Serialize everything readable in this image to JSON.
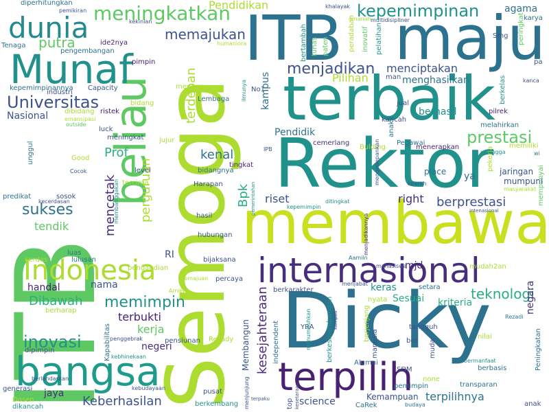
{
  "colors": {
    "background": "#ffffff",
    "palette": [
      "#440154",
      "#472d7b",
      "#3b528b",
      "#2c728e",
      "#21918c",
      "#28ae80",
      "#5ec962",
      "#addc30",
      "#fde725"
    ]
  },
  "words": [
    {
      "text": "ITB",
      "c": "#5ec962"
    },
    {
      "text": "Semoga",
      "c": "#addc30"
    },
    {
      "text": "maju",
      "c": "#2c728e"
    },
    {
      "text": "ITB",
      "c": "#2c728e"
    },
    {
      "text": "membawa",
      "c": "#c8e020"
    },
    {
      "text": "Dicky",
      "c": "#2c728e"
    },
    {
      "text": "Rektor",
      "c": "#21918c"
    },
    {
      "text": "terbaik",
      "c": "#21918c"
    },
    {
      "text": "beliau",
      "c": "#5ec962"
    },
    {
      "text": "terpilih",
      "c": "#482173"
    },
    {
      "text": "internasional",
      "c": "#472d7b"
    },
    {
      "text": "bangsa",
      "c": "#1e9b8a"
    },
    {
      "text": "Munaf",
      "c": "#21918c"
    },
    {
      "text": "Indonesia",
      "c": "#addc30"
    },
    {
      "text": "dunia",
      "c": "#238a8d"
    },
    {
      "text": "meningkatkan",
      "c": "#5ec962"
    },
    {
      "text": "kepemimpinan",
      "c": "#21918c"
    },
    {
      "text": "Universitas",
      "c": "#3b528b"
    },
    {
      "text": "prestasi",
      "c": "#5ec962"
    },
    {
      "text": "inovasi",
      "c": "#21918c"
    },
    {
      "text": "memimpin",
      "c": "#21918c"
    },
    {
      "text": "menjadikan",
      "c": "#3b528b"
    },
    {
      "text": "sukses",
      "c": "#2c728e"
    },
    {
      "text": "Keberhasilan",
      "c": "#3b528b"
    },
    {
      "text": "berprestasi",
      "c": "#3b528b"
    },
    {
      "text": "teknologi",
      "c": "#28ae80"
    },
    {
      "text": "kesejahteraan",
      "c": "#472d7b"
    },
    {
      "text": "Pendidikan",
      "c": "#addc30"
    },
    {
      "text": "memajukan",
      "c": "#3b528b"
    },
    {
      "text": "putra",
      "c": "#5ec962"
    },
    {
      "text": "menciptakan",
      "c": "#3b528b"
    },
    {
      "text": "menghasilkan",
      "c": "#2c728e"
    },
    {
      "text": "Pilihan",
      "c": "#addc30"
    },
    {
      "text": "Prof",
      "c": "#28ae80"
    },
    {
      "text": "kenal",
      "c": "#2c728e"
    },
    {
      "text": "mencetak",
      "c": "#472d7b"
    },
    {
      "text": "perguruan",
      "c": "#addc30"
    },
    {
      "text": "terdepan",
      "c": "#addc30"
    },
    {
      "text": "Bpk",
      "c": "#28ae80"
    },
    {
      "text": "riset",
      "c": "#3b528b"
    },
    {
      "text": "right",
      "c": "#472d7b"
    },
    {
      "text": "Dibawah",
      "c": "#28ae80"
    },
    {
      "text": "terbukti",
      "c": "#482173"
    },
    {
      "text": "kerja",
      "c": "#5ec962"
    },
    {
      "text": "negeri",
      "c": "#472d7b"
    },
    {
      "text": "jaya",
      "c": "#472d7b"
    },
    {
      "text": "Sesuai",
      "c": "#28ae80"
    },
    {
      "text": "kriteria",
      "c": "#28ae80"
    },
    {
      "text": "negara",
      "c": "#472d7b"
    },
    {
      "text": "terpilihnya",
      "c": "#2c728e"
    },
    {
      "text": "science",
      "c": "#3b528b"
    },
    {
      "text": "keras",
      "c": "#21918c"
    },
    {
      "text": "berhasil",
      "c": "#21918c"
    },
    {
      "text": "Membangun",
      "c": "#3b528b"
    },
    {
      "text": "handal",
      "c": "#482173"
    },
    {
      "text": "nama",
      "c": "#3b528b"
    },
    {
      "text": "tendik",
      "c": "#5ec962"
    },
    {
      "text": "Nasional",
      "c": "#3b528b"
    },
    {
      "text": "agama",
      "c": "#2c728e"
    },
    {
      "text": "kampus",
      "c": "#2c728e"
    },
    {
      "text": "mjd",
      "c": "#482173"
    },
    {
      "text": "RI",
      "c": "#3b528b"
    },
    {
      "text": "Pendidik",
      "c": "#2c728e"
    },
    {
      "text": "Kemampuan",
      "c": "#3b528b"
    },
    {
      "text": "Tenaga",
      "c": "#2c728e"
    },
    {
      "text": "pengembangan",
      "c": "#2c728e"
    },
    {
      "text": "ide2nya",
      "c": "#482173"
    },
    {
      "text": "pimpin",
      "c": "#482173"
    },
    {
      "text": "kepemimpinannya",
      "c": "#2c728e"
    },
    {
      "text": "industri",
      "c": "#3b528b"
    },
    {
      "text": "Capacity",
      "c": "#3b528b"
    },
    {
      "text": "dibidang",
      "c": "#addc30"
    },
    {
      "text": "ristek",
      "c": "#482173"
    },
    {
      "text": "bidang",
      "c": "#addc30"
    },
    {
      "text": "menang",
      "c": "#addc30"
    },
    {
      "text": "Lembaga",
      "c": "#2c728e"
    },
    {
      "text": "No1",
      "c": "#3b528b"
    },
    {
      "text": "man",
      "c": "#3b528b"
    },
    {
      "text": "diperhitungkan",
      "c": "#2c728e"
    },
    {
      "text": "pemikiran",
      "c": "#3b528b"
    },
    {
      "text": "kekinian",
      "c": "#3b528b"
    },
    {
      "text": "multidisipliner",
      "c": "#3b528b"
    },
    {
      "text": "khalayak",
      "c": "#3b528b"
    },
    {
      "text": "amanah",
      "c": "#addc30"
    },
    {
      "text": "peradaban",
      "c": "#addc30"
    },
    {
      "text": "inovatif",
      "c": "#5ec962"
    },
    {
      "text": "pelatihan",
      "c": "#21918c"
    },
    {
      "text": "paten",
      "c": "#5ec962"
    },
    {
      "text": "tunas",
      "c": "#5ec962"
    },
    {
      "text": "bertambah",
      "c": "#21918c"
    },
    {
      "text": "peringkat",
      "c": "#5ec962"
    },
    {
      "text": "karya",
      "c": "#2c728e"
    },
    {
      "text": "Smg",
      "c": "#3b528b"
    },
    {
      "text": "pa",
      "c": "#3b528b"
    },
    {
      "text": "kanca",
      "c": "#3b528b"
    },
    {
      "text": "berkelas",
      "c": "#21918c"
    },
    {
      "text": "anak2",
      "c": "#2c728e"
    },
    {
      "text": "pilrek",
      "c": "#482173"
    },
    {
      "text": "jual",
      "c": "#3b528b"
    },
    {
      "text": "kancah",
      "c": "#3b528b"
    },
    {
      "text": "ilmunya",
      "c": "#21918c"
    },
    {
      "text": "humaniora",
      "c": "#addc30"
    },
    {
      "text": "melahirkan",
      "c": "#2c728e"
    },
    {
      "text": "menerapkan",
      "c": "#482173"
    },
    {
      "text": "sehingga",
      "c": "#21918c"
    },
    {
      "text": "memiliki",
      "c": "#addc30"
    },
    {
      "text": "wi",
      "c": "#2c728e"
    },
    {
      "text": "jaringan",
      "c": "#3b528b"
    },
    {
      "text": "mumpuni",
      "c": "#3b528b"
    },
    {
      "text": "masyarakat",
      "c": "#addc30"
    },
    {
      "text": "ya",
      "c": "#2c728e"
    },
    {
      "text": "place",
      "c": "#2c728e"
    },
    {
      "text": "kearah",
      "c": "#3b528b"
    },
    {
      "text": "pekerja",
      "c": "#addc30"
    },
    {
      "text": "Pegawai",
      "c": "#2c728e"
    },
    {
      "text": "cemerlang",
      "c": "#472d7b"
    },
    {
      "text": "Bulding",
      "c": "#addc30"
    },
    {
      "text": "mengedepankan",
      "c": "#3b528b"
    },
    {
      "text": "outside",
      "c": "#5ec962"
    },
    {
      "text": "emansipasi",
      "c": "#addc30"
    },
    {
      "text": "unggul",
      "c": "#2c728e"
    },
    {
      "text": "luck",
      "c": "#3b528b"
    },
    {
      "text": "meningkat",
      "c": "#3b528b"
    },
    {
      "text": "jujur",
      "c": "#addc30"
    },
    {
      "text": "IPB",
      "c": "#3b528b"
    },
    {
      "text": "bidangnya",
      "c": "#2c728e"
    },
    {
      "text": "Good",
      "c": "#addc30"
    },
    {
      "text": "Cocok",
      "c": "#3b528b"
    },
    {
      "text": "membanggakan",
      "c": "#21918c"
    },
    {
      "text": "level",
      "c": "#3b528b"
    },
    {
      "text": "tercinta",
      "c": "#addc30"
    },
    {
      "text": "tingkat",
      "c": "#482173"
    },
    {
      "text": "Harapan",
      "c": "#3b528b"
    },
    {
      "text": "pemerintahan",
      "c": "#21918c"
    },
    {
      "text": "predikat",
      "c": "#2c728e"
    },
    {
      "text": "sosok",
      "c": "#3b528b"
    },
    {
      "text": "kecerdasan",
      "c": "#3b528b"
    },
    {
      "text": "hasil",
      "c": "#3b528b"
    },
    {
      "text": "kepemimpin",
      "c": "#21918c"
    },
    {
      "text": "ditingkat",
      "c": "#21918c"
    },
    {
      "text": "menjadikannya",
      "c": "#472d7b"
    },
    {
      "text": "intenasional",
      "c": "#3b528b"
    },
    {
      "text": "hubungan",
      "c": "#3b528b"
    },
    {
      "text": "luas",
      "c": "#2c728e"
    },
    {
      "text": "cerdas",
      "c": "#addc30"
    },
    {
      "text": "lulusan",
      "c": "#2c728e"
    },
    {
      "text": "bijaksana",
      "c": "#3b528b"
    },
    {
      "text": "Aamiin",
      "c": "#2c728e"
    },
    {
      "text": "mahasiswa",
      "c": "#3b528b"
    },
    {
      "text": "mudah2an",
      "c": "#addc30"
    },
    {
      "text": "pengabdian",
      "c": "#addc30"
    },
    {
      "text": "kemajuan",
      "c": "#addc30"
    },
    {
      "text": "percaya",
      "c": "#3b528b"
    },
    {
      "text": "Amien",
      "c": "#addc30"
    },
    {
      "text": "menjabat",
      "c": "#3b528b"
    },
    {
      "text": "setara",
      "c": "#2c728e"
    },
    {
      "text": "nyata",
      "c": "#addc30"
    },
    {
      "text": "berkarakter",
      "c": "#3b528b"
    },
    {
      "text": "berharap",
      "c": "#addc30"
    },
    {
      "text": "Kapabilitas",
      "c": "#2c728e"
    },
    {
      "text": "dipimpin",
      "c": "#3b528b"
    },
    {
      "text": "Rezadi",
      "c": "#2c728e"
    },
    {
      "text": "penggebrak",
      "c": "#3b528b"
    },
    {
      "text": "berjenjang",
      "c": "#addc30"
    },
    {
      "text": "berkesinambungan",
      "c": "#21918c"
    },
    {
      "text": "tangguh",
      "c": "#3b528b"
    },
    {
      "text": "YRA",
      "c": "#3b528b"
    },
    {
      "text": "kebhinekaan",
      "c": "#21918c"
    },
    {
      "text": "pensiunan",
      "c": "#3b528b"
    },
    {
      "text": "Rezady",
      "c": "#addc30"
    },
    {
      "text": "independent",
      "c": "#2c728e"
    },
    {
      "text": "manusia",
      "c": "#3b528b"
    },
    {
      "text": "kampus",
      "c": "#3b528b"
    },
    {
      "text": "ber",
      "c": "#3b528b"
    },
    {
      "text": "muda",
      "c": "#3b528b"
    },
    {
      "text": "nilai",
      "c": "#addc30"
    },
    {
      "text": "Peningkatan",
      "c": "#2c728e"
    },
    {
      "text": "bermanfaat",
      "c": "#21918c"
    },
    {
      "text": "berbasis",
      "c": "#2c728e"
    },
    {
      "text": "transparan",
      "c": "#2c728e"
    },
    {
      "text": "berlandaskan",
      "c": "#3b528b"
    },
    {
      "text": "monoton",
      "c": "#addc30"
    },
    {
      "text": "generasi",
      "c": "#3b528b"
    },
    {
      "text": "kebudayaan",
      "c": "#3b528b"
    },
    {
      "text": "pusat",
      "c": "#3b528b"
    },
    {
      "text": "SDM",
      "c": "#3b528b"
    },
    {
      "text": "Alumni",
      "c": "#2c728e"
    },
    {
      "text": "none",
      "c": "#addc30"
    },
    {
      "text": "berkembang",
      "c": "#21918c"
    },
    {
      "text": "menumbuhkan",
      "c": "#21918c"
    },
    {
      "text": "Dosen",
      "c": "#addc30"
    },
    {
      "text": "dikancah",
      "c": "#21918c"
    },
    {
      "text": "menjunjung",
      "c": "#3b528b"
    },
    {
      "text": "terpaku",
      "c": "#3b528b"
    },
    {
      "text": "top",
      "c": "#3b528b"
    },
    {
      "text": "kesetaraan",
      "c": "#3b528b"
    },
    {
      "text": "CaRek",
      "c": "#2c728e"
    },
    {
      "text": "pemimpin",
      "c": "#2c728e"
    },
    {
      "text": "budaya",
      "c": "#2c728e"
    },
    {
      "text": "anak",
      "c": "#3b528b"
    },
    {
      "text": "mempunyai",
      "c": "#5ec962"
    }
  ]
}
